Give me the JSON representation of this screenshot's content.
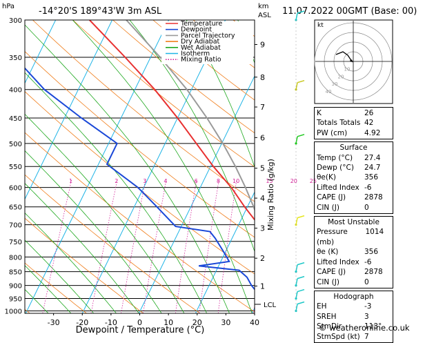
{
  "header": {
    "location": "-14°20'S  189°43'W  3m  ASL",
    "datetime": "11.07.2022  00GMT  (Base: 00)"
  },
  "axes": {
    "p_unit": "hPa",
    "alt_unit_1": "km",
    "alt_unit_2": "ASL",
    "xlabel": "Dewpoint / Temperature (°C)",
    "mixing_label": "Mixing Ratio (g/kg)",
    "lcl_label": "LCL"
  },
  "legend": [
    {
      "label": "Temperature",
      "color": "#e83030",
      "dash": ""
    },
    {
      "label": "Dewpoint",
      "color": "#1a48d8",
      "dash": ""
    },
    {
      "label": "Parcel Trajectory",
      "color": "#9a9a9a",
      "dash": ""
    },
    {
      "label": "Dry Adiabat",
      "color": "#f07d1a",
      "dash": ""
    },
    {
      "label": "Wet Adiabat",
      "color": "#1ea81e",
      "dash": ""
    },
    {
      "label": "Isotherm",
      "color": "#1eb4e6",
      "dash": ""
    },
    {
      "label": "Mixing Ratio",
      "color": "#d21e96",
      "dash": "1.5,2"
    }
  ],
  "chart_data": {
    "type": "skew-t",
    "pressure_ticks": [
      300,
      350,
      400,
      450,
      500,
      550,
      600,
      650,
      700,
      750,
      800,
      850,
      900,
      950,
      1000
    ],
    "temp_ticks": [
      -30,
      -20,
      -10,
      0,
      10,
      20,
      30,
      40
    ],
    "xlim": [
      -40,
      40
    ],
    "plim": [
      300,
      1010
    ],
    "altitude_ticks": [
      {
        "label": "9",
        "p": 332
      },
      {
        "label": "8",
        "p": 380
      },
      {
        "label": "7",
        "p": 430
      },
      {
        "label": "6",
        "p": 488
      },
      {
        "label": "5",
        "p": 554
      },
      {
        "label": "4",
        "p": 627
      },
      {
        "label": "3",
        "p": 710
      },
      {
        "label": "2",
        "p": 804
      },
      {
        "label": "1",
        "p": 902
      }
    ],
    "lcl_p": 973,
    "mixing_ratios": [
      1,
      2,
      3,
      4,
      6,
      8,
      10,
      15,
      20,
      25
    ],
    "mixing_label_p": 590,
    "temperature": [
      {
        "p": 1000,
        "t": 27.4
      },
      {
        "p": 970,
        "t": 25.5
      },
      {
        "p": 950,
        "t": 24.0
      },
      {
        "p": 900,
        "t": 21.5
      },
      {
        "p": 860,
        "t": 19.8
      },
      {
        "p": 830,
        "t": 22.0
      },
      {
        "p": 800,
        "t": 20.0
      },
      {
        "p": 770,
        "t": 17.5
      },
      {
        "p": 730,
        "t": 15.0
      },
      {
        "p": 700,
        "t": 13.5
      },
      {
        "p": 650,
        "t": 9.5
      },
      {
        "p": 600,
        "t": 5.5
      },
      {
        "p": 550,
        "t": 0.5
      },
      {
        "p": 500,
        "t": -4.5
      },
      {
        "p": 450,
        "t": -10.0
      },
      {
        "p": 400,
        "t": -16.5
      },
      {
        "p": 350,
        "t": -24.5
      },
      {
        "p": 300,
        "t": -34.0
      }
    ],
    "dewpoint": [
      {
        "p": 1000,
        "t": 24.7
      },
      {
        "p": 950,
        "t": 20.5
      },
      {
        "p": 900,
        "t": 17.5
      },
      {
        "p": 870,
        "t": 16.0
      },
      {
        "p": 845,
        "t": 14.0
      },
      {
        "p": 830,
        "t": 6.5
      },
      {
        "p": 815,
        "t": 11.5
      },
      {
        "p": 780,
        "t": 9.5
      },
      {
        "p": 740,
        "t": 7.0
      },
      {
        "p": 720,
        "t": 5.5
      },
      {
        "p": 705,
        "t": -1.0
      },
      {
        "p": 650,
        "t": -6.0
      },
      {
        "p": 600,
        "t": -11.0
      },
      {
        "p": 570,
        "t": -15.0
      },
      {
        "p": 545,
        "t": -18.5
      },
      {
        "p": 500,
        "t": -18.5
      },
      {
        "p": 450,
        "t": -27.0
      },
      {
        "p": 400,
        "t": -36.0
      },
      {
        "p": 350,
        "t": -44.0
      },
      {
        "p": 300,
        "t": -52.0
      }
    ],
    "parcel": [
      {
        "p": 1000,
        "t": 27.4
      },
      {
        "p": 973,
        "t": 24.4
      },
      {
        "p": 900,
        "t": 22.0
      },
      {
        "p": 850,
        "t": 20.3
      },
      {
        "p": 800,
        "t": 18.4
      },
      {
        "p": 750,
        "t": 16.2
      },
      {
        "p": 700,
        "t": 13.8
      },
      {
        "p": 650,
        "t": 11.1
      },
      {
        "p": 600,
        "t": 8.0
      },
      {
        "p": 550,
        "t": 4.4
      },
      {
        "p": 500,
        "t": 0.2
      },
      {
        "p": 450,
        "t": -4.8
      },
      {
        "p": 400,
        "t": -10.8
      },
      {
        "p": 350,
        "t": -18.3
      },
      {
        "p": 300,
        "t": -27.5
      }
    ],
    "wind_barbs": [
      {
        "p": 1000,
        "color": "#1ec8c8"
      },
      {
        "p": 950,
        "color": "#1ec8c8"
      },
      {
        "p": 900,
        "color": "#1ec8c8"
      },
      {
        "p": 850,
        "color": "#1ec8c8"
      },
      {
        "p": 700,
        "color": "#e6e61e"
      },
      {
        "p": 500,
        "color": "#1ec81e"
      },
      {
        "p": 400,
        "color": "#c8c81e"
      },
      {
        "p": 300,
        "color": "#1ec8c8"
      }
    ]
  },
  "hodograph": {
    "label": "kt",
    "ring_labels": [
      "10",
      "20",
      "30",
      "40"
    ]
  },
  "indices": [
    {
      "label": "K",
      "value": "26"
    },
    {
      "label": "Totals Totals",
      "value": "42"
    },
    {
      "label": "PW (cm)",
      "value": "4.92"
    }
  ],
  "surface": {
    "title": "Surface",
    "rows": [
      {
        "label": "Temp (°C)",
        "value": "27.4"
      },
      {
        "label": "Dewp (°C)",
        "value": "24.7"
      },
      {
        "label": "θe(K)",
        "value": "356"
      },
      {
        "label": "Lifted Index",
        "value": "-6"
      },
      {
        "label": "CAPE (J)",
        "value": "2878"
      },
      {
        "label": "CIN (J)",
        "value": "0"
      }
    ]
  },
  "unstable": {
    "title": "Most Unstable",
    "rows": [
      {
        "label": "Pressure (mb)",
        "value": "1014"
      },
      {
        "label": "θe (K)",
        "value": "356"
      },
      {
        "label": "Lifted Index",
        "value": "-6"
      },
      {
        "label": "CAPE (J)",
        "value": "2878"
      },
      {
        "label": "CIN (J)",
        "value": "0"
      }
    ]
  },
  "hodo_table": {
    "title": "Hodograph",
    "rows": [
      {
        "label": "EH",
        "value": "-3"
      },
      {
        "label": "SREH",
        "value": "3"
      },
      {
        "label": "StmDir",
        "value": "113°"
      },
      {
        "label": "StmSpd (kt)",
        "value": "7"
      }
    ]
  },
  "footer": {
    "copyright": "© weatheronline.co.uk"
  }
}
